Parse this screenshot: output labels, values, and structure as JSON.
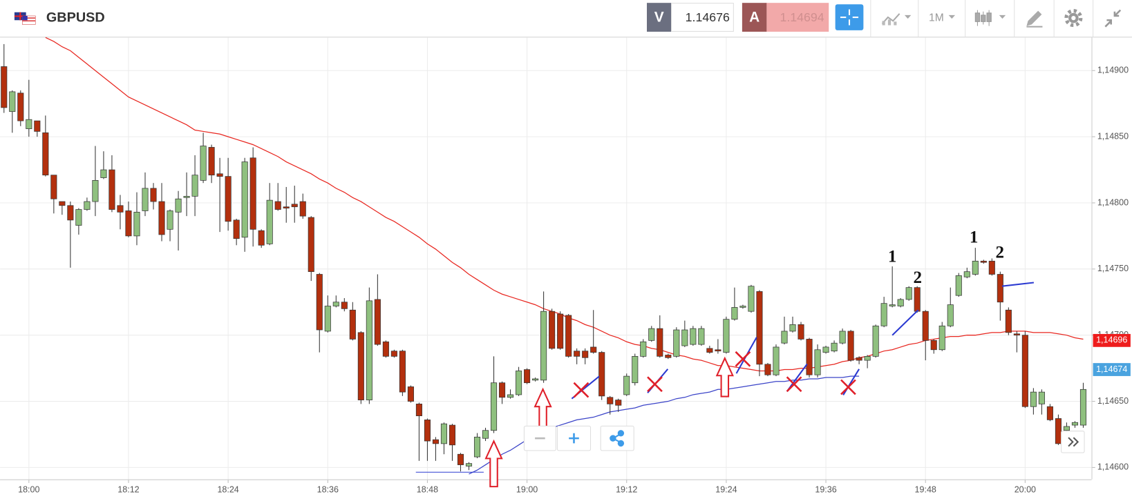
{
  "header": {
    "symbol": "GBPUSD",
    "bid_label": "V",
    "bid": 1.14676,
    "ask_label": "A",
    "ask": 1.14694,
    "timeframe": "1M"
  },
  "chart_data": {
    "type": "candlestick",
    "categories": [
      null,
      null,
      null,
      "18:00",
      null,
      null,
      null,
      null,
      null,
      null,
      null,
      null,
      null,
      null,
      null,
      "18:12",
      null,
      null,
      null,
      null,
      null,
      null,
      null,
      null,
      null,
      null,
      null,
      "18:24",
      null,
      null,
      null,
      null,
      null,
      null,
      null,
      null,
      null,
      null,
      null,
      "18:36",
      null,
      null,
      null,
      null,
      null,
      null,
      null,
      null,
      null,
      null,
      null,
      "18:48",
      null,
      null,
      null,
      null,
      null,
      null,
      null,
      null,
      null,
      null,
      null,
      "19:00",
      null,
      null,
      null,
      null,
      null,
      null,
      null,
      null,
      null,
      null,
      null,
      "19:12",
      null,
      null,
      null,
      null,
      null,
      null,
      null,
      null,
      null,
      null,
      null,
      "19:24",
      null,
      null,
      null,
      null,
      null,
      null,
      null,
      null,
      null,
      null,
      null,
      "19:36",
      null,
      null,
      null,
      null,
      null,
      null,
      null,
      null,
      null,
      null,
      null,
      "19:48",
      null,
      null,
      null,
      null,
      null,
      null,
      null,
      null,
      null,
      null,
      null,
      "20:00",
      null,
      null,
      null,
      null,
      null,
      null,
      null
    ],
    "open": [
      1.14903,
      1.14869,
      1.14883,
      1.14856,
      1.14862,
      1.14853,
      1.14821,
      1.14801,
      1.14798,
      1.14783,
      1.14795,
      1.14801,
      1.14819,
      1.14825,
      1.14798,
      1.14794,
      1.14775,
      1.14794,
      1.14811,
      1.14801,
      1.1478,
      1.14793,
      1.14804,
      1.14805,
      1.14817,
      1.14842,
      1.14822,
      1.1482,
      1.14787,
      1.14774,
      1.14834,
      1.14779,
      1.14769,
      1.14801,
      1.14797,
      1.14799,
      1.14801,
      1.14789,
      1.14746,
      1.14703,
      1.14722,
      1.14725,
      1.14719,
      1.14702,
      1.14651,
      1.14727,
      1.14695,
      1.14688,
      1.14688,
      1.14661,
      1.14648,
      1.14636,
      1.14621,
      1.14618,
      1.14632,
      1.1461,
      1.14601,
      1.14608,
      1.14622,
      1.14628,
      1.14664,
      1.14653,
      1.14655,
      1.14674,
      1.14666,
      1.14666,
      1.14718,
      1.14716,
      1.14715,
      1.14688,
      1.14688,
      1.14691,
      1.14687,
      1.14653,
      1.14651,
      1.14655,
      1.14664,
      1.14684,
      1.14696,
      1.14705,
      1.14685,
      1.14684,
      1.14692,
      1.14693,
      1.14693,
      1.1469,
      1.14689,
      1.14687,
      1.14712,
      1.14721,
      1.14718,
      1.14733,
      1.14678,
      1.1467,
      1.14694,
      1.14703,
      1.14708,
      1.14697,
      1.1467,
      1.14687,
      1.14688,
      1.14694,
      1.14703,
      1.14683,
      1.14681,
      1.14684,
      1.14707,
      1.14722,
      1.14722,
      1.14727,
      1.14736,
      1.14718,
      1.14696,
      1.14689,
      1.14707,
      1.1473,
      1.14744,
      1.14746,
      1.14756,
      1.14756,
      1.14746,
      1.14719,
      1.14701,
      1.147,
      1.14646,
      1.14648,
      1.14646,
      1.14637,
      1.14628,
      1.14632,
      1.14632
    ],
    "high": [
      1.1492,
      1.14885,
      1.14885,
      1.14893,
      1.14862,
      1.14866,
      1.14821,
      1.14801,
      1.14801,
      1.14796,
      1.14804,
      1.14843,
      1.14839,
      1.14836,
      1.14806,
      1.14801,
      1.14808,
      1.14823,
      1.14815,
      1.14815,
      1.14795,
      1.14809,
      1.14823,
      1.14836,
      1.14853,
      1.14844,
      1.14834,
      1.14834,
      1.14788,
      1.14834,
      1.14842,
      1.1478,
      1.14815,
      1.14815,
      1.14812,
      1.14813,
      1.14807,
      1.1479,
      1.14747,
      1.1473,
      1.1473,
      1.14728,
      1.14725,
      1.14703,
      1.14736,
      1.14746,
      1.14696,
      1.14689,
      1.14689,
      1.14662,
      1.14649,
      1.14637,
      1.14623,
      1.14634,
      1.14633,
      1.14611,
      1.14604,
      1.14626,
      1.1463,
      1.14684,
      1.14665,
      1.14659,
      1.14676,
      1.14675,
      1.14668,
      1.14733,
      1.1472,
      1.14718,
      1.14716,
      1.1469,
      1.1469,
      1.14719,
      1.14688,
      1.14654,
      1.14652,
      1.14671,
      1.14686,
      1.14697,
      1.14707,
      1.14715,
      1.14686,
      1.14706,
      1.14711,
      1.14707,
      1.14707,
      1.14692,
      1.14697,
      1.14714,
      1.14736,
      1.14723,
      1.14738,
      1.14734,
      1.14679,
      1.14693,
      1.14714,
      1.14714,
      1.1471,
      1.14698,
      1.14693,
      1.14692,
      1.14696,
      1.14705,
      1.14704,
      1.14684,
      1.14685,
      1.14708,
      1.14729,
      1.14752,
      1.14728,
      1.14737,
      1.14737,
      1.14719,
      1.14697,
      1.1471,
      1.14736,
      1.14747,
      1.14751,
      1.14766,
      1.14757,
      1.14758,
      1.14748,
      1.14721,
      1.14703,
      1.14703,
      1.1466,
      1.14659,
      1.14648,
      1.1464,
      1.14634,
      1.14635,
      1.14664
    ],
    "low": [
      1.14868,
      1.14853,
      1.14858,
      1.1485,
      1.1485,
      1.1482,
      1.14792,
      1.14791,
      1.14751,
      1.14776,
      1.14794,
      1.1479,
      1.14818,
      1.14793,
      1.1478,
      1.14774,
      1.14768,
      1.1479,
      1.14795,
      1.14771,
      1.14771,
      1.14764,
      1.1479,
      1.1479,
      1.14815,
      1.14815,
      1.14778,
      1.14779,
      1.14768,
      1.14763,
      1.14767,
      1.14766,
      1.14768,
      1.14794,
      1.14785,
      1.14785,
      1.14788,
      1.14741,
      1.14687,
      1.14702,
      1.14721,
      1.14718,
      1.14696,
      1.14648,
      1.14648,
      1.14692,
      1.14683,
      1.14683,
      1.14654,
      1.14649,
      1.14605,
      1.14605,
      1.14605,
      1.1461,
      1.14605,
      1.14597,
      1.14598,
      1.14607,
      1.1462,
      1.14626,
      1.14648,
      1.14652,
      1.14654,
      1.14663,
      1.14665,
      1.14664,
      1.14689,
      1.14689,
      1.14683,
      1.14678,
      1.14678,
      1.14686,
      1.14651,
      1.1464,
      1.14642,
      1.14654,
      1.14662,
      1.14683,
      1.14695,
      1.14683,
      1.14682,
      1.14683,
      1.14691,
      1.14692,
      1.14692,
      1.14686,
      1.14686,
      1.14686,
      1.14711,
      1.1472,
      1.14717,
      1.14669,
      1.14669,
      1.14669,
      1.14693,
      1.14702,
      1.14696,
      1.14668,
      1.14668,
      1.14686,
      1.14687,
      1.14693,
      1.1468,
      1.14678,
      1.14675,
      1.14683,
      1.14706,
      1.14721,
      1.14721,
      1.14726,
      1.14717,
      1.14681,
      1.14686,
      1.14688,
      1.14706,
      1.14729,
      1.14743,
      1.14745,
      1.14754,
      1.14745,
      1.14711,
      1.147,
      1.14687,
      1.14645,
      1.1464,
      1.1464,
      1.14635,
      1.14617,
      1.14625,
      1.1463,
      1.1463
    ],
    "close": [
      1.14872,
      1.14884,
      1.14862,
      1.14863,
      1.14854,
      1.14821,
      1.14803,
      1.14798,
      1.14787,
      1.14795,
      1.14801,
      1.14817,
      1.14825,
      1.14795,
      1.14793,
      1.14775,
      1.14793,
      1.14811,
      1.14801,
      1.14776,
      1.14794,
      1.14803,
      1.14805,
      1.14821,
      1.14843,
      1.14821,
      1.1482,
      1.14786,
      1.14773,
      1.14831,
      1.1478,
      1.14768,
      1.14802,
      1.14795,
      1.14796,
      1.14797,
      1.1479,
      1.14748,
      1.14704,
      1.14722,
      1.14725,
      1.1472,
      1.14697,
      1.14651,
      1.14726,
      1.14693,
      1.14684,
      1.14684,
      1.14657,
      1.1465,
      1.14639,
      1.1462,
      1.14618,
      1.14633,
      1.14617,
      1.14602,
      1.14603,
      1.14623,
      1.14628,
      1.14664,
      1.14653,
      1.14655,
      1.14673,
      1.14664,
      1.14667,
      1.14718,
      1.1469,
      1.1469,
      1.14684,
      1.14684,
      1.14683,
      1.14687,
      1.14654,
      1.14648,
      1.14647,
      1.14669,
      1.14684,
      1.14695,
      1.14705,
      1.14684,
      1.14683,
      1.14704,
      1.14704,
      1.14705,
      1.14705,
      1.14687,
      1.14688,
      1.14712,
      1.14721,
      1.14722,
      1.14737,
      1.14678,
      1.1467,
      1.14691,
      1.14703,
      1.14708,
      1.14697,
      1.1467,
      1.14689,
      1.14691,
      1.14694,
      1.14703,
      1.14681,
      1.14681,
      1.14684,
      1.14707,
      1.14724,
      1.14723,
      1.14727,
      1.14736,
      1.14718,
      1.14696,
      1.14689,
      1.14707,
      1.14723,
      1.14745,
      1.14748,
      1.14756,
      1.14755,
      1.14746,
      1.14725,
      1.14702,
      1.147,
      1.14646,
      1.14657,
      1.14657,
      1.14636,
      1.14618,
      1.14631,
      1.14634,
      1.14659
    ],
    "up_color": "#8fc07f",
    "down_color": "#b3300e",
    "overlays": [
      {
        "color": "#e8261f",
        "values": [
          null,
          null,
          null,
          null,
          null,
          1.14925,
          1.14922,
          1.14918,
          1.14915,
          1.1491,
          1.14905,
          1.149,
          1.14895,
          1.1489,
          1.14885,
          1.1488,
          1.14877,
          1.14874,
          1.14871,
          1.14868,
          1.14865,
          1.14862,
          1.14859,
          1.14855,
          1.14854,
          1.14853,
          1.14852,
          1.1485,
          1.14848,
          1.14846,
          1.14844,
          1.14841,
          1.14838,
          1.14835,
          1.14831,
          1.14828,
          1.14825,
          1.14822,
          1.14818,
          1.14815,
          1.14811,
          1.14808,
          1.14804,
          1.14801,
          1.14797,
          1.14793,
          1.14789,
          1.14786,
          1.14782,
          1.14778,
          1.14774,
          1.14769,
          1.14765,
          1.1476,
          1.14755,
          1.14751,
          1.14746,
          1.14742,
          1.14738,
          1.14734,
          1.14731,
          1.14729,
          1.14727,
          1.14725,
          1.14723,
          1.1472,
          1.14718,
          1.14716,
          1.14713,
          1.14711,
          1.14708,
          1.14706,
          1.14703,
          1.147,
          1.14698,
          1.14695,
          1.14693,
          1.14692,
          1.1469,
          1.14689,
          1.14687,
          1.14685,
          1.14684,
          1.14682,
          1.14681,
          1.14679,
          1.14677,
          1.14677,
          1.14676,
          1.14675,
          1.14674,
          1.14673,
          1.14673,
          1.14673,
          1.14674,
          1.14674,
          1.14675,
          1.14675,
          1.14676,
          1.14677,
          1.14678,
          1.1468,
          1.14681,
          1.14683,
          1.14684,
          1.14686,
          1.14688,
          1.14689,
          1.14691,
          1.14693,
          1.14694,
          1.14696,
          1.14697,
          1.14698,
          1.14699,
          1.14699,
          1.147,
          1.147,
          1.14701,
          1.14702,
          1.14702,
          1.14703,
          1.14703,
          1.14703,
          1.14702,
          1.14702,
          1.14702,
          1.14701,
          1.147,
          1.14698,
          1.14697
        ]
      },
      {
        "color": "#3a43c8",
        "values": [
          null,
          null,
          null,
          null,
          null,
          null,
          null,
          null,
          null,
          null,
          null,
          null,
          null,
          null,
          null,
          null,
          null,
          null,
          null,
          null,
          null,
          null,
          null,
          null,
          null,
          null,
          null,
          null,
          null,
          null,
          null,
          null,
          null,
          null,
          null,
          null,
          null,
          null,
          null,
          null,
          null,
          null,
          null,
          null,
          null,
          null,
          null,
          null,
          null,
          null,
          null,
          null,
          null,
          null,
          null,
          null,
          1.14595,
          1.14598,
          1.14602,
          1.14606,
          1.1461,
          1.14613,
          1.14617,
          1.14621,
          1.14625,
          1.14628,
          1.1463,
          1.14632,
          1.14634,
          1.14636,
          1.14637,
          1.14638,
          1.1464,
          1.14642,
          1.14643,
          1.14644,
          1.14645,
          1.14647,
          1.14648,
          1.14649,
          1.1465,
          1.14652,
          1.14653,
          1.14655,
          1.14656,
          1.14657,
          1.14659,
          1.14659,
          1.1466,
          1.14661,
          1.14662,
          1.14663,
          1.14664,
          1.14665,
          1.14665,
          1.14666,
          1.14666,
          1.14667,
          1.14667,
          1.14668,
          1.14668,
          1.14668,
          1.14669,
          1.14669,
          null,
          null,
          null,
          null,
          null,
          null,
          null,
          null,
          null,
          null,
          null,
          null,
          null,
          null,
          null,
          null,
          null,
          null,
          null,
          null,
          null,
          null,
          null,
          null,
          null,
          null,
          null
        ]
      }
    ],
    "annotations": [
      "1",
      "2",
      "1",
      "2"
    ],
    "price_labels": [
      {
        "value": 1.14696,
        "label": "1,14696",
        "color": "#ee1c1c"
      },
      {
        "value": 1.14674,
        "label": "1,14674",
        "color": "#4aa3df"
      }
    ],
    "ylim": [
      1.14591,
      1.14925
    ],
    "yticks": [
      {
        "value": 1.146,
        "label": "1,14600"
      },
      {
        "value": 1.1465,
        "label": "1,14650"
      },
      {
        "value": 1.147,
        "label": "1,14700"
      },
      {
        "value": 1.1475,
        "label": "1,14750"
      },
      {
        "value": 1.148,
        "label": "1,14800"
      },
      {
        "value": 1.1485,
        "label": "1,14850"
      },
      {
        "value": 1.149,
        "label": "1,14900"
      }
    ],
    "grid": true
  }
}
